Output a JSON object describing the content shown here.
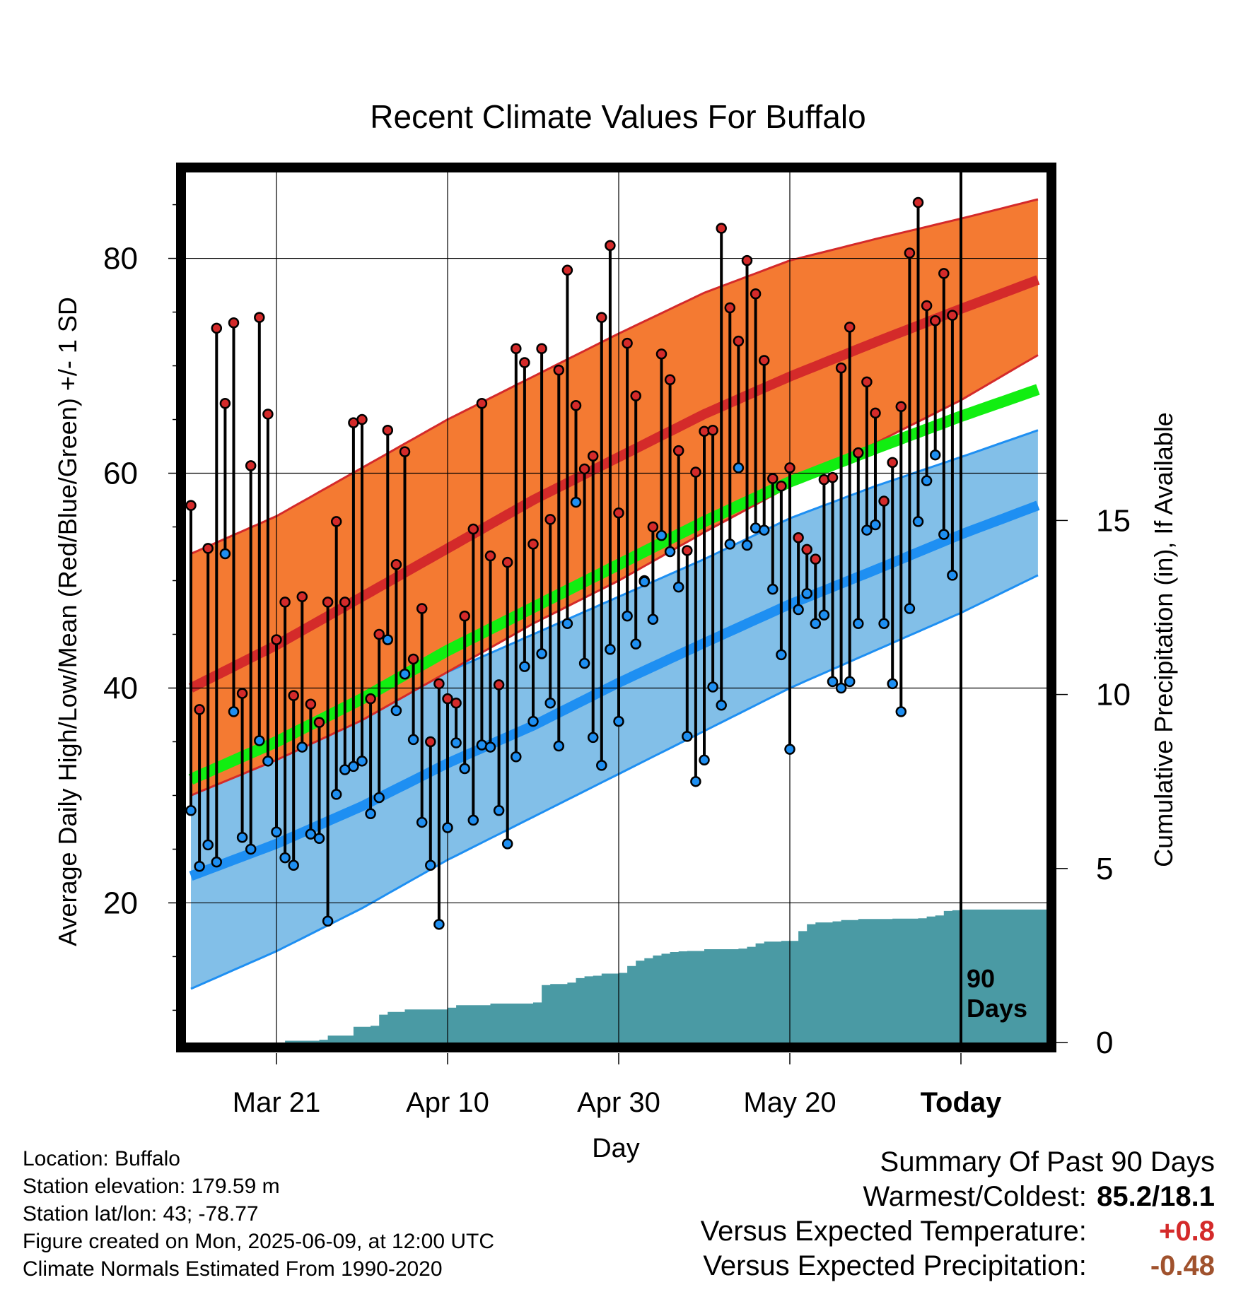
{
  "chart_data": {
    "type": "line",
    "title": "Recent Climate Values For Buffalo",
    "xlabel": "Day",
    "ylabel": "Average Daily High/Low/Mean (Red/Blue/Green) +/- 1 SD",
    "y2label": "Cumulative Precipitation (in), If Available",
    "ylim": [
      7,
      88
    ],
    "y_ticks": [
      20,
      40,
      60,
      80
    ],
    "y2lim": [
      0,
      25
    ],
    "y2_ticks": [
      0,
      5,
      10,
      15
    ],
    "x_range_days": [
      0,
      99
    ],
    "x_ticks": [
      {
        "day": 10,
        "label": "Mar 21"
      },
      {
        "day": 30,
        "label": "Apr 10"
      },
      {
        "day": 50,
        "label": "Apr 30"
      },
      {
        "day": 70,
        "label": "May 20"
      },
      {
        "day": 90,
        "label": "Today"
      }
    ],
    "grid": true,
    "today_marker": {
      "day": 90,
      "label_line1": "90",
      "label_line2": "Days"
    },
    "normal_high": {
      "days": [
        0,
        10,
        20,
        30,
        40,
        50,
        60,
        70,
        80,
        90,
        99
      ],
      "mean": [
        40,
        44,
        48.5,
        53,
        57.5,
        61.5,
        65.5,
        69,
        72.2,
        75.3,
        78
      ]
    },
    "normal_high_band": {
      "days": [
        0,
        10,
        20,
        30,
        40,
        50,
        60,
        70,
        80,
        90,
        99
      ],
      "upper": [
        52.5,
        56,
        60.5,
        65,
        69,
        73,
        76.8,
        79.8,
        81.8,
        83.7,
        85.5
      ],
      "lower": [
        30,
        33.3,
        37,
        41.5,
        46,
        50,
        54.5,
        58.8,
        62.8,
        66.8,
        71
      ]
    },
    "normal_low": {
      "days": [
        0,
        10,
        20,
        30,
        40,
        50,
        60,
        70,
        80,
        90,
        99
      ],
      "mean": [
        22.5,
        25.5,
        29,
        33,
        36.5,
        40.5,
        44.2,
        47.8,
        51,
        54.3,
        57
      ]
    },
    "normal_low_band": {
      "days": [
        0,
        10,
        20,
        30,
        40,
        50,
        60,
        70,
        80,
        90,
        99
      ],
      "upper": [
        33,
        36,
        38.5,
        41.5,
        45,
        48.5,
        52,
        55.8,
        58.8,
        61.5,
        64
      ],
      "lower": [
        12,
        15.5,
        19.5,
        24,
        28,
        32,
        36,
        40,
        43.5,
        47,
        50.5
      ]
    },
    "normal_mean": {
      "days": [
        0,
        10,
        20,
        30,
        40,
        50,
        60,
        70,
        80,
        90,
        99
      ],
      "values": [
        31.5,
        35,
        39,
        43.5,
        47.5,
        51.5,
        55.5,
        59.2,
        62.3,
        65.3,
        67.8
      ]
    },
    "daily_highs": [
      57,
      38,
      53,
      73.5,
      66.5,
      74,
      39.5,
      60.7,
      74.5,
      65.5,
      44.5,
      48,
      39.3,
      48.5,
      38.5,
      36.8,
      48,
      55.5,
      48,
      64.7,
      65,
      39,
      45,
      64,
      51.5,
      62,
      42.7,
      47.4,
      35,
      40.4,
      39,
      38.6,
      46.7,
      54.8,
      66.5,
      52.3,
      40.3,
      51.7,
      71.6,
      70.3,
      53.4,
      71.6,
      55.7,
      69.6,
      78.9,
      66.3,
      60.4,
      61.6,
      74.5,
      81.2,
      56.3,
      72.1,
      67.2,
      50,
      55,
      71.1,
      68.7,
      62.1,
      52.8,
      60.1,
      63.9,
      64,
      82.8,
      75.4,
      72.3,
      79.8,
      76.7,
      70.5,
      59.5,
      58.8,
      60.5,
      54,
      52.9,
      52,
      59.4,
      59.6,
      69.8,
      73.6,
      61.9,
      68.5,
      65.6,
      57.4,
      61,
      66.2,
      80.5,
      85.2,
      75.6,
      74.2,
      78.6,
      74.7
    ],
    "daily_lows": [
      28.6,
      23.4,
      25.4,
      23.8,
      52.5,
      37.8,
      26.1,
      25,
      35.1,
      33.2,
      26.6,
      24.2,
      23.5,
      34.5,
      26.4,
      26,
      18.3,
      30.1,
      32.4,
      32.7,
      33.2,
      28.3,
      29.8,
      44.5,
      37.9,
      41.3,
      35.2,
      27.5,
      23.5,
      18,
      27,
      34.9,
      32.5,
      27.7,
      34.7,
      34.5,
      28.6,
      25.5,
      33.6,
      42,
      36.9,
      43.2,
      38.6,
      34.6,
      46,
      57.3,
      42.3,
      35.4,
      32.8,
      43.6,
      36.9,
      46.7,
      44.1,
      49.9,
      46.4,
      54.2,
      52.7,
      49.4,
      35.5,
      31.3,
      33.3,
      40.1,
      38.4,
      53.4,
      60.5,
      53.3,
      54.9,
      54.7,
      49.2,
      43.1,
      34.3,
      47.3,
      48.8,
      46,
      46.8,
      40.6,
      40,
      40.6,
      46,
      54.7,
      55.2,
      46,
      40.4,
      37.8,
      47.4,
      55.5,
      59.3,
      61.7,
      54.3,
      50.5
    ],
    "cumulative_precip": {
      "days": [
        0,
        10,
        11,
        15,
        16,
        19,
        21,
        22,
        23,
        25,
        30,
        31,
        35,
        40,
        41,
        42,
        44,
        45,
        46,
        47,
        48,
        50,
        51,
        52,
        53,
        54,
        55,
        56,
        57,
        58,
        60,
        64,
        65,
        66,
        67,
        68,
        69,
        70,
        71,
        72,
        73,
        75,
        76,
        78,
        80,
        82,
        85,
        86,
        87,
        88,
        89,
        90,
        99
      ],
      "values": [
        0,
        0,
        0.05,
        0.08,
        0.2,
        0.45,
        0.48,
        0.8,
        0.88,
        0.95,
        1.0,
        1.07,
        1.12,
        1.15,
        1.65,
        1.68,
        1.72,
        1.85,
        1.9,
        1.92,
        1.98,
        2.0,
        2.2,
        2.35,
        2.42,
        2.5,
        2.55,
        2.6,
        2.62,
        2.63,
        2.68,
        2.7,
        2.75,
        2.85,
        2.9,
        2.9,
        2.92,
        2.92,
        3.2,
        3.4,
        3.45,
        3.48,
        3.52,
        3.55,
        3.55,
        3.56,
        3.57,
        3.62,
        3.65,
        3.78,
        3.8,
        3.82,
        3.82
      ]
    },
    "colors": {
      "high_band": "#f47a32",
      "high_mean": "#d42a2a",
      "high_edge": "#d42a2a",
      "low_band": "#82bfe8",
      "low_mean": "#1e8ff2",
      "low_edge": "#1e8ff2",
      "mean_line": "#11ee11",
      "precip": "#4a9aa4",
      "high_dot": "#d42a2a",
      "low_dot": "#1e8ff2"
    }
  },
  "location_info": [
    "Location: Buffalo",
    "Station elevation: 179.59 m",
    "Station lat/lon: 43; -78.77",
    "Figure created on Mon, 2025-06-09, at 12:00 UTC",
    "Climate Normals Estimated From 1990-2020"
  ],
  "summary": {
    "heading": "Summary Of Past 90 Days",
    "warmest_coldest_label": "Warmest/Coldest:",
    "warmest_coldest_value": "85.2/18.1",
    "temp_label": "Versus Expected Temperature:",
    "temp_value": "+0.8",
    "precip_label": "Versus Expected Precipitation:",
    "precip_value": "-0.48"
  }
}
